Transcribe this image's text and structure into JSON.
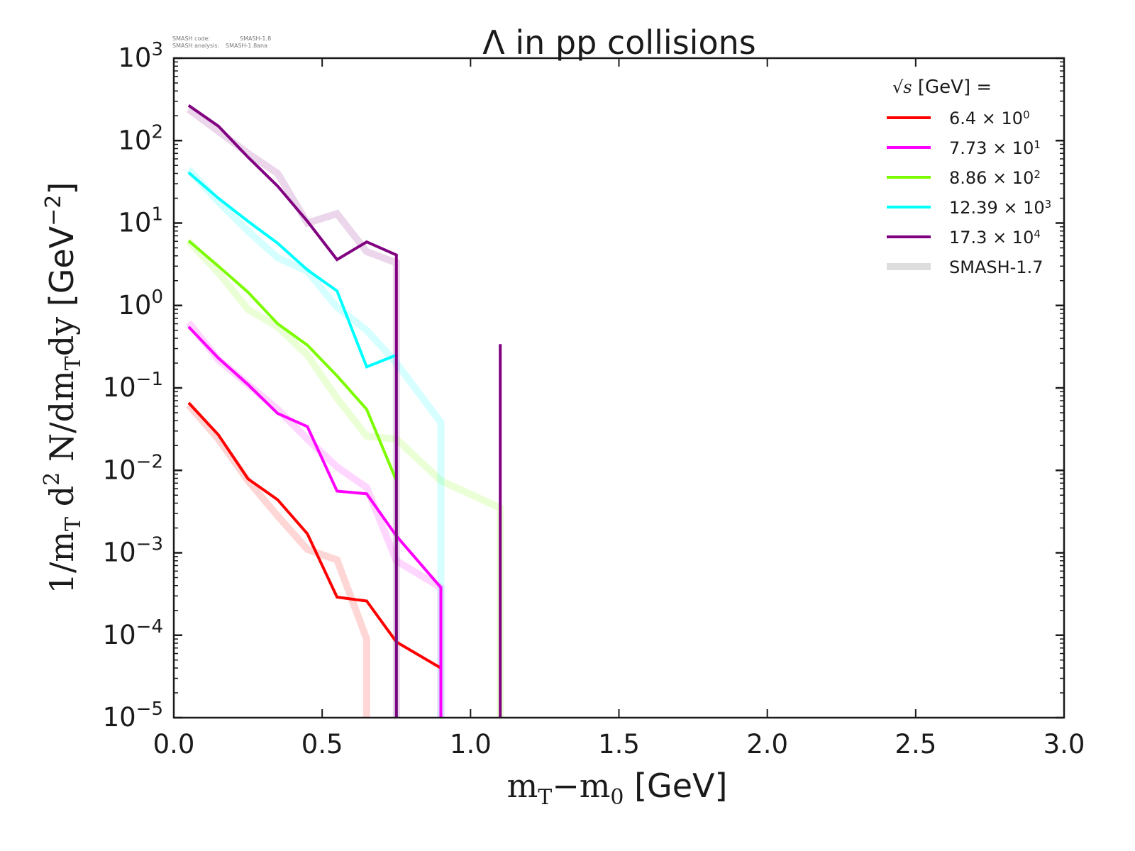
{
  "stamp": {
    "line1_label": "SMASH code:",
    "line1_value": "SMASH-1.8",
    "line2_label": "SMASH analysis:",
    "line2_value": "SMASH-1.8ana"
  },
  "chart_data": {
    "type": "line",
    "title": "Λ in pp collisions",
    "xlabel": "m_T−m_0 [GeV]",
    "ylabel": "1/m_T d^2 N/dm_T dy [GeV^−2]",
    "xlabel_parts": {
      "m": "m",
      "sub1": "T",
      "minus": "−m",
      "sub2": "0",
      "unit": " [GeV]"
    },
    "ylabel_parts": {
      "a": "1/m",
      "sub1": "T",
      "b": " d",
      "sup": "2",
      "c": " N/dm",
      "sub2": "T",
      "d": "dy ",
      "unit": "[GeV",
      "unitsup": "−2",
      "close": "]"
    },
    "xlim": [
      0.0,
      3.0
    ],
    "ylim": [
      1e-05,
      1000
    ],
    "yscale": "log",
    "xticks": [
      "0.0",
      "0.5",
      "1.0",
      "1.5",
      "2.0",
      "2.5",
      "3.0"
    ],
    "xtick_values": [
      0.0,
      0.5,
      1.0,
      1.5,
      2.0,
      2.5,
      3.0
    ],
    "yticks": [
      {
        "base": "10",
        "exp": "3",
        "value": 1000
      },
      {
        "base": "10",
        "exp": "2",
        "value": 100
      },
      {
        "base": "10",
        "exp": "1",
        "value": 10
      },
      {
        "base": "10",
        "exp": "0",
        "value": 1
      },
      {
        "base": "10",
        "exp": "−1",
        "value": 0.1
      },
      {
        "base": "10",
        "exp": "−2",
        "value": 0.01
      },
      {
        "base": "10",
        "exp": "−3",
        "value": 0.001
      },
      {
        "base": "10",
        "exp": "−4",
        "value": 0.0001
      },
      {
        "base": "10",
        "exp": "−5",
        "value": 1e-05
      }
    ],
    "grid": false,
    "legend": {
      "position": "top-right",
      "title_root": "√s",
      "title_rest": " [GeV] =",
      "entries": [
        {
          "label": "6.4 × 10",
          "sup": "0",
          "color": "#ff0000",
          "kind": "current"
        },
        {
          "label": "7.73 × 10",
          "sup": "1",
          "color": "#ff00ff",
          "kind": "current"
        },
        {
          "label": "8.86 × 10",
          "sup": "2",
          "color": "#7cfc00",
          "kind": "current"
        },
        {
          "label": "12.39 × 10",
          "sup": "3",
          "color": "#00ffff",
          "kind": "current"
        },
        {
          "label": "17.3 × 10",
          "sup": "4",
          "color": "#800080",
          "kind": "current"
        },
        {
          "label": "SMASH-1.7",
          "sup": "",
          "color": "#dddddd",
          "kind": "reference"
        }
      ]
    },
    "series": [
      {
        "name": "6.4 GeV (SMASH-1.8)",
        "color": "#ff0000",
        "kind": "current",
        "x": [
          0.05,
          0.15,
          0.25,
          0.35,
          0.45,
          0.55,
          0.65,
          0.75,
          0.9,
          0.9
        ],
        "y": [
          0.066,
          0.027,
          0.0079,
          0.0044,
          0.0017,
          0.00029,
          0.00026,
          8.3e-05,
          4e-05,
          1e-05
        ]
      },
      {
        "name": "7.73 GeV (SMASH-1.8)",
        "color": "#ff00ff",
        "kind": "current",
        "x": [
          0.05,
          0.15,
          0.25,
          0.35,
          0.45,
          0.55,
          0.65,
          0.75,
          0.9,
          0.9
        ],
        "y": [
          0.55,
          0.23,
          0.11,
          0.049,
          0.034,
          0.0056,
          0.0052,
          0.0016,
          0.00038,
          1e-05
        ]
      },
      {
        "name": "8.86 GeV (SMASH-1.8)",
        "color": "#7cfc00",
        "kind": "current",
        "x": [
          0.05,
          0.15,
          0.25,
          0.35,
          0.45,
          0.55,
          0.65,
          0.75,
          0.75
        ],
        "y": [
          6.1,
          3.0,
          1.45,
          0.6,
          0.33,
          0.14,
          0.055,
          0.0075,
          1e-05
        ]
      },
      {
        "name": "12.39 GeV (SMASH-1.8)",
        "color": "#00ffff",
        "kind": "current",
        "x": [
          0.05,
          0.15,
          0.25,
          0.35,
          0.45,
          0.55,
          0.65,
          0.75,
          0.75
        ],
        "y": [
          41,
          20,
          10.5,
          5.7,
          2.7,
          1.5,
          0.18,
          0.25,
          1e-05
        ]
      },
      {
        "name": "17.3 GeV (SMASH-1.8)",
        "color": "#800080",
        "kind": "current",
        "x": [
          0.05,
          0.15,
          0.25,
          0.35,
          0.45,
          0.55,
          0.65,
          0.75,
          0.75,
          1.1,
          1.1,
          1.1
        ],
        "y": [
          267,
          150,
          63,
          28,
          10.5,
          3.6,
          5.9,
          4.1,
          1e-05,
          null,
          0.34,
          1e-05
        ]
      },
      {
        "name": "6.4 GeV (SMASH-1.7)",
        "color": "#ff0000",
        "kind": "reference",
        "x": [
          0.05,
          0.15,
          0.25,
          0.35,
          0.45,
          0.55,
          0.65,
          0.65
        ],
        "y": [
          0.062,
          0.024,
          0.0075,
          0.0028,
          0.0011,
          0.00082,
          9e-05,
          1e-05
        ]
      },
      {
        "name": "7.73 GeV (SMASH-1.7)",
        "color": "#ff00ff",
        "kind": "reference",
        "x": [
          0.05,
          0.15,
          0.25,
          0.35,
          0.45,
          0.55,
          0.65,
          0.75,
          0.9,
          0.9
        ],
        "y": [
          0.62,
          0.22,
          0.11,
          0.055,
          0.024,
          0.011,
          0.0062,
          0.0008,
          0.00038,
          1e-05
        ]
      },
      {
        "name": "8.86 GeV (SMASH-1.7)",
        "color": "#7cfc00",
        "kind": "reference",
        "x": [
          0.05,
          0.15,
          0.25,
          0.35,
          0.45,
          0.55,
          0.65,
          0.75,
          0.9,
          1.1,
          1.1
        ],
        "y": [
          6.0,
          2.5,
          0.9,
          0.55,
          0.25,
          0.075,
          0.026,
          0.024,
          0.0075,
          0.0035,
          1e-05
        ]
      },
      {
        "name": "12.39 GeV (SMASH-1.7)",
        "color": "#00ffff",
        "kind": "reference",
        "x": [
          0.05,
          0.15,
          0.25,
          0.35,
          0.45,
          0.55,
          0.65,
          0.75,
          0.9,
          0.9
        ],
        "y": [
          45,
          18,
          8,
          3.8,
          2.6,
          0.95,
          0.5,
          0.2,
          0.038,
          1e-05
        ]
      },
      {
        "name": "17.3 GeV (SMASH-1.7)",
        "color": "#800080",
        "kind": "reference",
        "x": [
          0.05,
          0.15,
          0.25,
          0.35,
          0.45,
          0.55,
          0.65,
          0.75,
          0.75
        ],
        "y": [
          240,
          130,
          70,
          40,
          10,
          13,
          4.5,
          3.3,
          1e-05
        ]
      }
    ]
  }
}
